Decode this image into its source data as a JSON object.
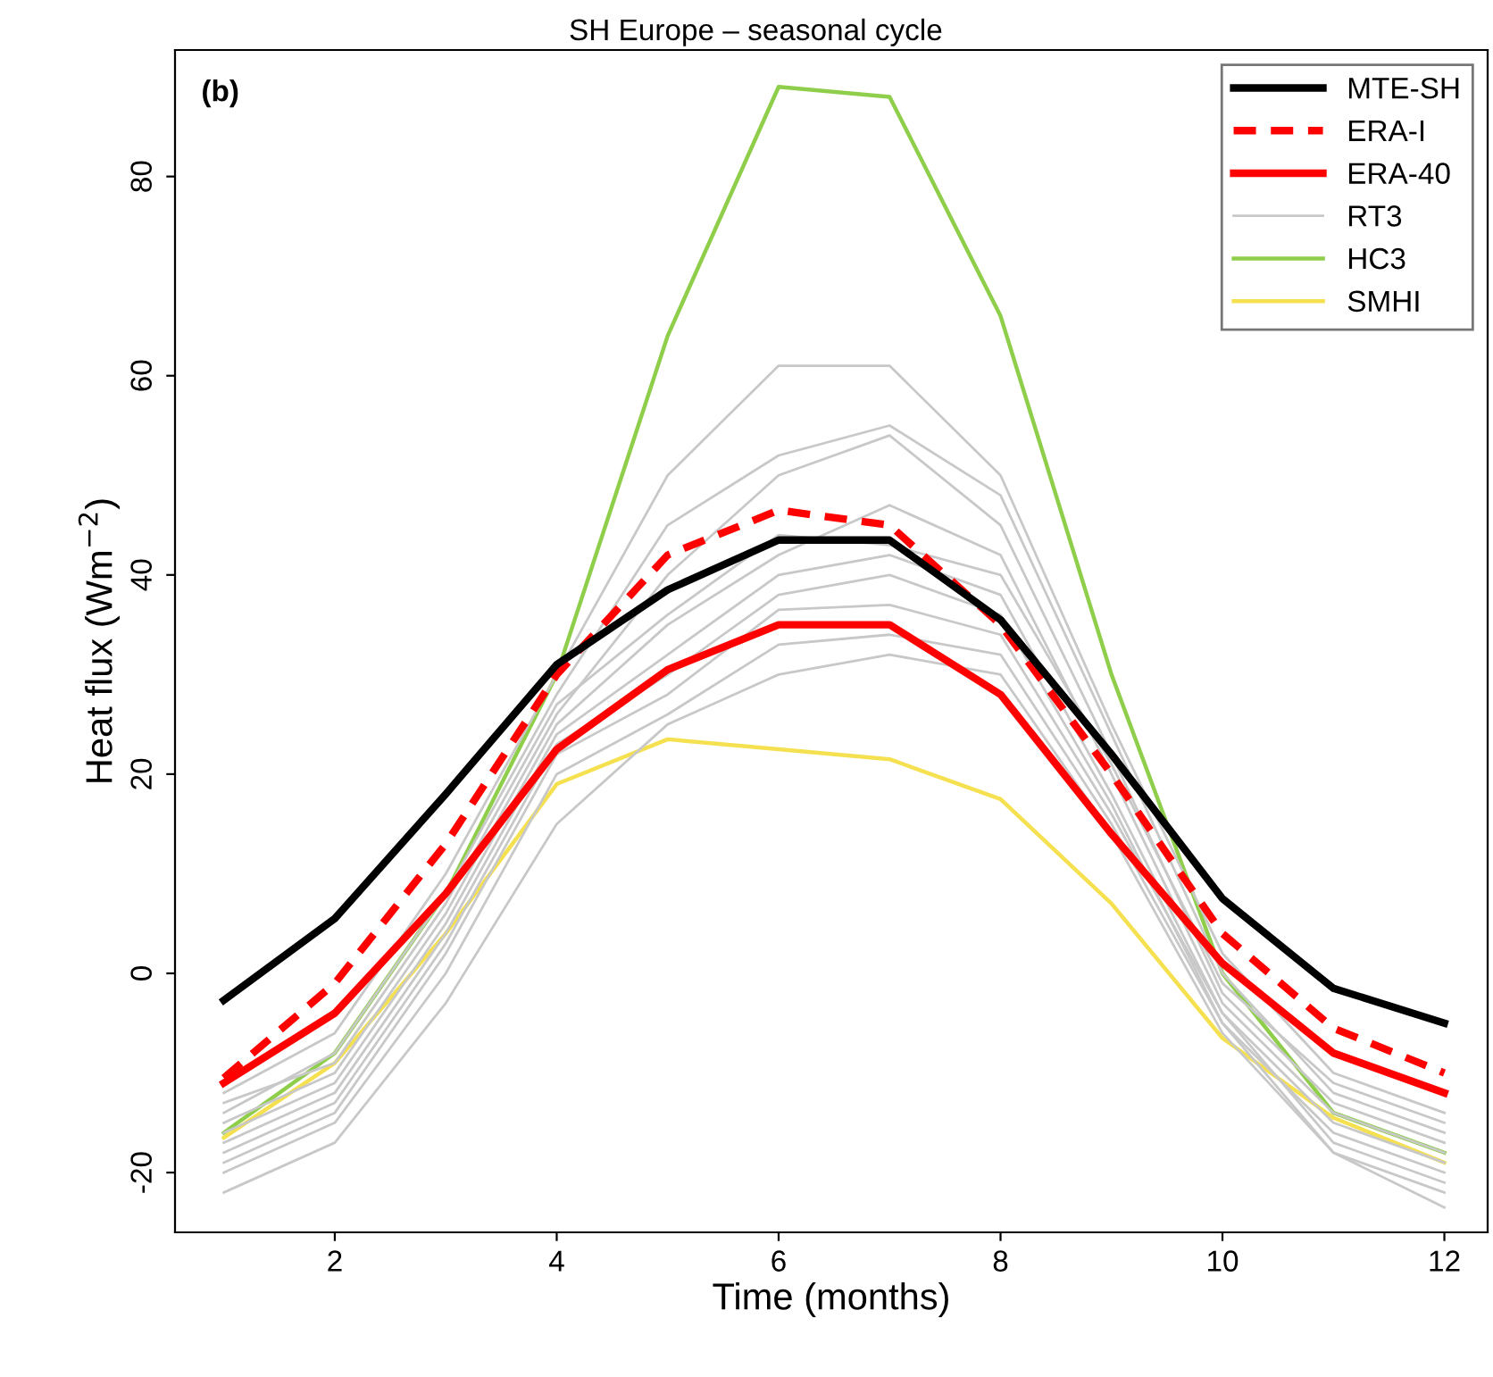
{
  "chart_data": {
    "type": "line",
    "title": "SH Europe – seasonal cycle",
    "xlabel": "Time (months)",
    "ylabel": "Heat flux (Wm$^{−2}$)",
    "annotations": [
      "(b)"
    ],
    "x": [
      1,
      2,
      3,
      4,
      5,
      6,
      7,
      8,
      9,
      10,
      11,
      12
    ],
    "xlim": [
      0.56,
      12.39
    ],
    "ylim": [
      -26,
      92.7
    ],
    "xticks": [
      2,
      4,
      6,
      8,
      10,
      12
    ],
    "yticks": [
      -20,
      0,
      20,
      40,
      60,
      80
    ],
    "grid": false,
    "legend": "top right",
    "marker": "none",
    "series": [
      {
        "name": "MTE-SH",
        "color": "#000000",
        "values": [
          -2.7,
          5.5,
          18,
          31,
          38.5,
          43.5,
          43.5,
          35.5,
          22,
          7.5,
          -1.5,
          -5
        ]
      },
      {
        "name": "ERA-I",
        "color": "#ff0000",
        "line_style": "dashed",
        "values": [
          -10.5,
          -1,
          13,
          30,
          42,
          46.5,
          45,
          35,
          20,
          4,
          -5.5,
          -10
        ]
      },
      {
        "name": "ERA-40",
        "color": "#ff0000",
        "values": [
          -11,
          -4,
          8,
          22.5,
          30.5,
          35,
          35,
          28,
          14,
          1,
          -8,
          -12
        ]
      },
      {
        "name": "RT3",
        "color": "#c8c8c8",
        "values": [
          -12,
          -6,
          10,
          30,
          50,
          61,
          61,
          50,
          25,
          2,
          -10,
          -14
        ]
      },
      {
        "color": "#c8c8c8",
        "values": [
          -14,
          -8,
          8,
          28,
          45,
          52,
          55,
          48,
          24,
          0,
          -12,
          -16
        ]
      },
      {
        "color": "#c8c8c8",
        "values": [
          -15,
          -10,
          6,
          26,
          40,
          50,
          54,
          45,
          22,
          -2,
          -13,
          -17
        ]
      },
      {
        "color": "#c8c8c8",
        "values": [
          -16,
          -11,
          5,
          25,
          35,
          42,
          47,
          42,
          20,
          -3,
          -14,
          -18
        ]
      },
      {
        "color": "#c8c8c8",
        "values": [
          -17,
          -12,
          4,
          24,
          32,
          40,
          42,
          38,
          18,
          -4,
          -15,
          -19
        ]
      },
      {
        "color": "#c8c8c8",
        "values": [
          -18,
          -13,
          3,
          23,
          30,
          38,
          40,
          36,
          17,
          -5,
          -16,
          -20
        ]
      },
      {
        "color": "#c8c8c8",
        "values": [
          -19,
          -14,
          2,
          22,
          28,
          36.5,
          37,
          34,
          16,
          -4,
          -17,
          -21
        ]
      },
      {
        "color": "#c8c8c8",
        "values": [
          -20,
          -15,
          0,
          20,
          26,
          33,
          34,
          32,
          15,
          -5,
          -18,
          -22
        ]
      },
      {
        "color": "#c8c8c8",
        "values": [
          -22,
          -17,
          -3,
          15,
          25,
          30,
          32,
          30,
          14,
          -6,
          -18,
          -23.5
        ]
      },
      {
        "color": "#c8c8c8",
        "values": [
          -13,
          -9,
          7,
          27,
          36,
          44,
          43,
          40,
          21,
          -1,
          -11,
          -15
        ]
      },
      {
        "name": "HC3",
        "color": "#8fce4a",
        "values": [
          -16,
          -8,
          8,
          30,
          64,
          89,
          88,
          66,
          30,
          0,
          -14,
          -18
        ]
      },
      {
        "name": "SMHI",
        "color": "#f5e050",
        "values": [
          -16.5,
          -9,
          4,
          19,
          23.5,
          22.5,
          21.5,
          17.5,
          7,
          -6.5,
          -14.5,
          -19
        ]
      }
    ]
  }
}
